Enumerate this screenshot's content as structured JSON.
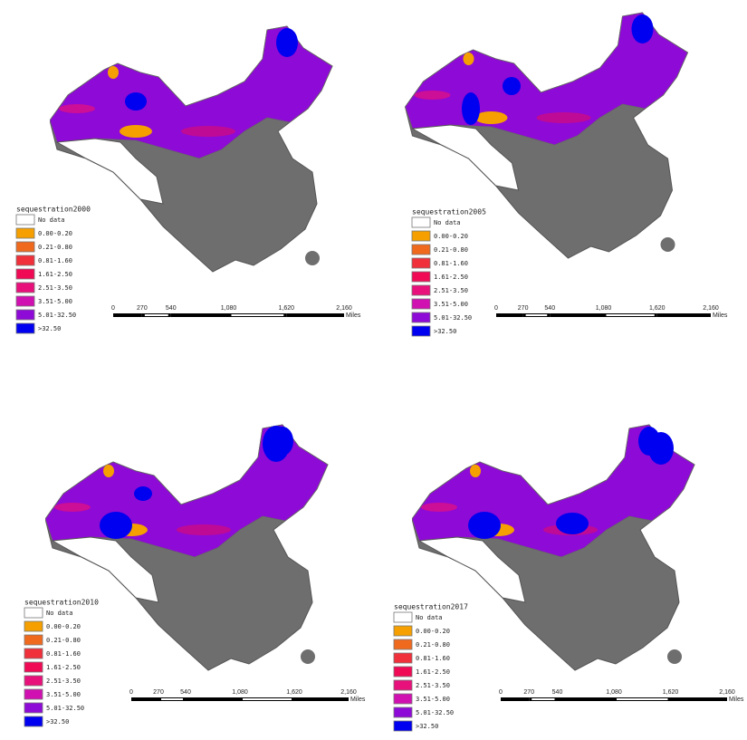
{
  "panels": [
    {
      "legend_title": "sequestration2000"
    },
    {
      "legend_title": "sequestration2005"
    },
    {
      "legend_title": "sequestration2010"
    },
    {
      "legend_title": "sequestration2017"
    }
  ],
  "legend": {
    "items": [
      {
        "label": "No data",
        "color": "#ffffff"
      },
      {
        "label": "0.00-0.20",
        "color": "#f5a000"
      },
      {
        "label": "0.21-0.80",
        "color": "#f06a1e"
      },
      {
        "label": "0.81-1.60",
        "color": "#f0303a"
      },
      {
        "label": "1.61-2.50",
        "color": "#f00a55"
      },
      {
        "label": "2.51-3.50",
        "color": "#e8107a"
      },
      {
        "label": "3.51-5.00",
        "color": "#d010b0"
      },
      {
        "label": "5.01-32.50",
        "color": "#8e0ad6"
      },
      {
        "label": ">32.50",
        "color": "#0000f0"
      }
    ]
  },
  "scale_bar": {
    "ticks": [
      "0",
      "270",
      "540",
      "1,080",
      "1,620",
      "2,160"
    ],
    "unit": "Miles"
  }
}
